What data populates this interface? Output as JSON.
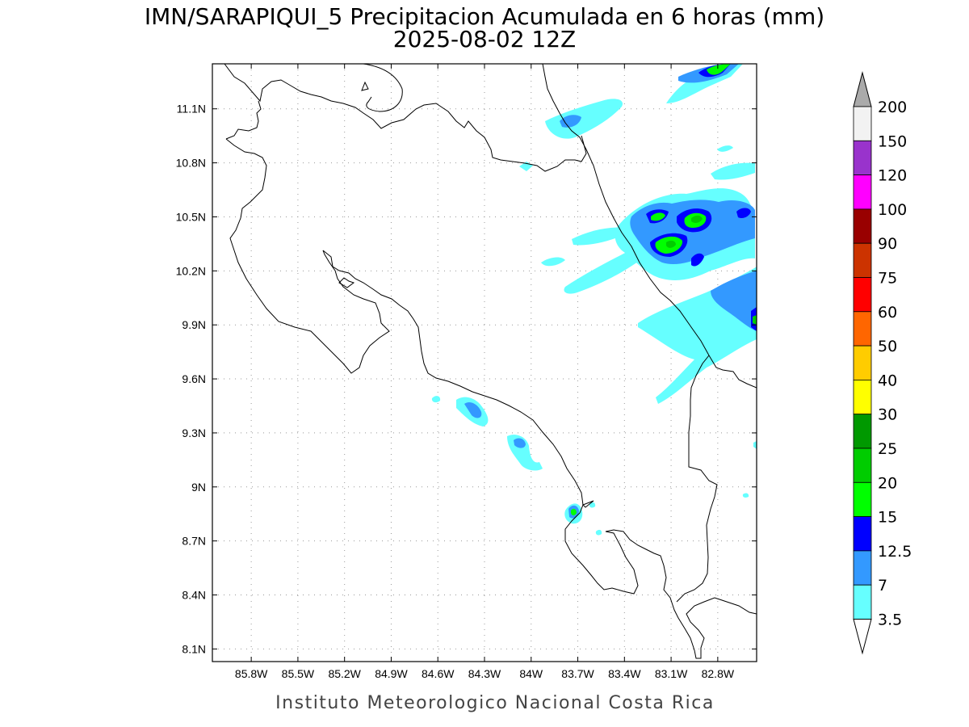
{
  "title": {
    "line1": "IMN/SARAPIQUI_5 Precipitacion Acumulada en 6 horas (mm)",
    "line2": "2025-08-02 12Z"
  },
  "credit": "Instituto Meteorologico Nacional Costa Rica",
  "map": {
    "lon_range": [
      -86.05,
      -82.55
    ],
    "lat_range": [
      8.03,
      11.35
    ],
    "x_ticks": [
      {
        "lon": -85.8,
        "label": "85.8W"
      },
      {
        "lon": -85.5,
        "label": "85.5W"
      },
      {
        "lon": -85.2,
        "label": "85.2W"
      },
      {
        "lon": -84.9,
        "label": "84.9W"
      },
      {
        "lon": -84.6,
        "label": "84.6W"
      },
      {
        "lon": -84.3,
        "label": "84.3W"
      },
      {
        "lon": -84.0,
        "label": "84W"
      },
      {
        "lon": -83.7,
        "label": "83.7W"
      },
      {
        "lon": -83.4,
        "label": "83.4W"
      },
      {
        "lon": -83.1,
        "label": "83.1W"
      },
      {
        "lon": -82.8,
        "label": "82.8W"
      }
    ],
    "y_ticks": [
      {
        "lat": 11.1,
        "label": "11.1N"
      },
      {
        "lat": 10.8,
        "label": "10.8N"
      },
      {
        "lat": 10.5,
        "label": "10.5N"
      },
      {
        "lat": 10.2,
        "label": "10.2N"
      },
      {
        "lat": 9.9,
        "label": "9.9N"
      },
      {
        "lat": 9.6,
        "label": "9.6N"
      },
      {
        "lat": 9.3,
        "label": "9.3N"
      },
      {
        "lat": 9.0,
        "label": "9N"
      },
      {
        "lat": 8.7,
        "label": "8.7N"
      },
      {
        "lat": 8.4,
        "label": "8.4N"
      },
      {
        "lat": 8.1,
        "label": "8.1N"
      }
    ],
    "grid": true
  },
  "colorbar": {
    "units": "mm",
    "levels": [
      {
        "label": "3.5",
        "color": "#ffffff"
      },
      {
        "label": "7",
        "color": "#66ffff"
      },
      {
        "label": "12.5",
        "color": "#3399ff"
      },
      {
        "label": "15",
        "color": "#0000ff"
      },
      {
        "label": "20",
        "color": "#00ff00"
      },
      {
        "label": "25",
        "color": "#00cc00"
      },
      {
        "label": "30",
        "color": "#009900"
      },
      {
        "label": "40",
        "color": "#ffff00"
      },
      {
        "label": "50",
        "color": "#ffcc00"
      },
      {
        "label": "60",
        "color": "#ff6600"
      },
      {
        "label": "75",
        "color": "#ff0000"
      },
      {
        "label": "90",
        "color": "#cc3300"
      },
      {
        "label": "100",
        "color": "#990000"
      },
      {
        "label": "120",
        "color": "#ff00ff"
      },
      {
        "label": "150",
        "color": "#9933cc"
      },
      {
        "label": "200",
        "color": "#f2f2f2"
      }
    ],
    "over_color": "#aaaaaa",
    "under_color": "#ffffff"
  },
  "precip_cells": [
    {
      "lon": -82.75,
      "lat": 11.28,
      "rx": 0.12,
      "ry": 0.05,
      "class": 20
    },
    {
      "lon": -82.95,
      "lat": 11.25,
      "rx": 0.08,
      "ry": 0.03,
      "class": 7
    },
    {
      "lon": -83.68,
      "lat": 10.99,
      "rx": 0.06,
      "ry": 0.025,
      "class": 15
    },
    {
      "lon": -83.45,
      "lat": 11.04,
      "rx": 0.08,
      "ry": 0.03,
      "class": 3.5
    },
    {
      "lon": -83.08,
      "lat": 10.46,
      "rx": 0.08,
      "ry": 0.035,
      "class": 20
    },
    {
      "lon": -82.92,
      "lat": 10.44,
      "rx": 0.07,
      "ry": 0.05,
      "class": 25
    },
    {
      "lon": -83.0,
      "lat": 10.3,
      "rx": 0.1,
      "ry": 0.045,
      "class": 25
    },
    {
      "lon": -82.85,
      "lat": 10.2,
      "rx": 0.03,
      "ry": 0.04,
      "class": 15
    },
    {
      "lon": -82.68,
      "lat": 10.47,
      "rx": 0.04,
      "ry": 0.02,
      "class": 15
    },
    {
      "lon": -82.57,
      "lat": 9.86,
      "rx": 0.02,
      "ry": 0.04,
      "class": 20
    },
    {
      "lon": -84.33,
      "lat": 9.38,
      "rx": 0.05,
      "ry": 0.04,
      "class": 12.5
    },
    {
      "lon": -84.02,
      "lat": 9.21,
      "rx": 0.03,
      "ry": 0.03,
      "class": 12.5
    },
    {
      "lon": -83.68,
      "lat": 8.82,
      "rx": 0.025,
      "ry": 0.035,
      "class": 20
    }
  ]
}
